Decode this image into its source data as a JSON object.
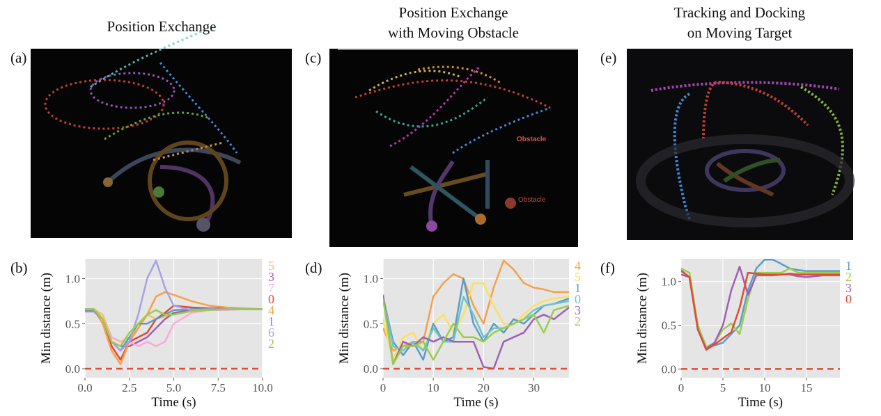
{
  "columns": [
    {
      "title": [
        "Position Exchange"
      ],
      "panel_label": "(a)",
      "annotations": []
    },
    {
      "title": [
        "Position Exchange",
        "with Moving Obstacle"
      ],
      "panel_label": "(c)",
      "annotations": [
        "Obstacle",
        "Obstacle"
      ]
    },
    {
      "title": [
        "Tracking and Docking",
        "on Moving Target"
      ],
      "panel_label": "(e)",
      "annotations": []
    }
  ],
  "chart_data": [
    {
      "type": "line",
      "panel_label": "(b)",
      "xlabel": "Time (s)",
      "ylabel": "Min distance (m)",
      "xlim": [
        0,
        10
      ],
      "xticks": [
        {
          "value": 0,
          "label": "0.0"
        },
        {
          "value": 2.5,
          "label": "2.5"
        },
        {
          "value": 5,
          "label": "5.0"
        },
        {
          "value": 7.5,
          "label": "7.5"
        },
        {
          "value": 10,
          "label": "10.0"
        }
      ],
      "ylim": [
        -0.1,
        1.22
      ],
      "yticks": [
        {
          "value": 0,
          "label": "0.0"
        },
        {
          "value": 0.5,
          "label": "0.5"
        },
        {
          "value": 1,
          "label": "1.0"
        }
      ],
      "grid": true,
      "hline": 0,
      "hline_color": "#E24A33",
      "x": [
        0,
        0.5,
        1,
        1.5,
        2,
        2.5,
        3,
        3.5,
        4,
        4.5,
        5,
        6,
        7,
        8,
        9,
        10
      ],
      "series": [
        {
          "name": "5",
          "color": "#FBC15E",
          "values": [
            0.66,
            0.66,
            0.6,
            0.35,
            0.3,
            0.35,
            0.45,
            0.6,
            0.55,
            0.58,
            0.62,
            0.65,
            0.66,
            0.66,
            0.66,
            0.66
          ]
        },
        {
          "name": "3",
          "color": "#A05FB5",
          "values": [
            0.65,
            0.64,
            0.55,
            0.3,
            0.25,
            0.25,
            0.3,
            0.35,
            0.45,
            0.55,
            0.62,
            0.65,
            0.66,
            0.66,
            0.66,
            0.66
          ]
        },
        {
          "name": "7",
          "color": "#FFA8D8",
          "values": [
            0.63,
            0.63,
            0.55,
            0.35,
            0.3,
            0.3,
            0.25,
            0.3,
            0.25,
            0.3,
            0.5,
            0.62,
            0.65,
            0.65,
            0.66,
            0.66
          ]
        },
        {
          "name": "0",
          "color": "#E24A33",
          "values": [
            0.66,
            0.66,
            0.55,
            0.25,
            0.1,
            0.3,
            0.35,
            0.4,
            0.55,
            0.62,
            0.7,
            0.68,
            0.67,
            0.67,
            0.66,
            0.66
          ]
        },
        {
          "name": "4",
          "color": "#F5A04A",
          "values": [
            0.66,
            0.66,
            0.5,
            0.2,
            0.05,
            0.3,
            0.45,
            0.6,
            0.8,
            0.85,
            0.82,
            0.75,
            0.7,
            0.68,
            0.67,
            0.66
          ]
        },
        {
          "name": "1",
          "color": "#5B9BC8",
          "values": [
            0.64,
            0.64,
            0.55,
            0.3,
            0.2,
            0.35,
            0.5,
            0.5,
            0.55,
            0.6,
            0.65,
            0.66,
            0.66,
            0.66,
            0.66,
            0.66
          ]
        },
        {
          "name": "6",
          "color": "#A3A3E3",
          "values": [
            0.66,
            0.66,
            0.55,
            0.3,
            0.2,
            0.3,
            0.6,
            1.0,
            1.2,
            0.9,
            0.7,
            0.65,
            0.66,
            0.66,
            0.66,
            0.66
          ]
        },
        {
          "name": "2",
          "color": "#9ACD4B",
          "values": [
            0.66,
            0.66,
            0.55,
            0.3,
            0.25,
            0.4,
            0.5,
            0.6,
            0.65,
            0.6,
            0.6,
            0.64,
            0.65,
            0.66,
            0.66,
            0.66
          ]
        }
      ]
    },
    {
      "type": "line",
      "panel_label": "(d)",
      "xlabel": "Time (s)",
      "ylabel": "Min distance (m)",
      "xlim": [
        0,
        37
      ],
      "xticks": [
        0,
        10,
        20,
        30
      ],
      "ylim": [
        -0.1,
        1.22
      ],
      "yticks": [
        {
          "value": 0,
          "label": "0.0"
        },
        {
          "value": 0.5,
          "label": "0.5"
        },
        {
          "value": 1,
          "label": "1.0"
        }
      ],
      "grid": true,
      "hline": 0,
      "hline_color": "#E24A33",
      "x": [
        0,
        2,
        4,
        6,
        8,
        10,
        12,
        14,
        16,
        18,
        20,
        22,
        24,
        26,
        28,
        30,
        32,
        34,
        37
      ],
      "series": [
        {
          "name": "4",
          "color": "#F5A04A",
          "values": [
            0.45,
            0.2,
            0.25,
            0.3,
            0.3,
            0.8,
            0.95,
            1.05,
            1.0,
            0.7,
            0.5,
            0.9,
            1.2,
            1.1,
            0.95,
            0.9,
            0.88,
            0.85,
            0.85
          ]
        },
        {
          "name": "5",
          "color": "#FBE05E",
          "values": [
            0.55,
            0.1,
            0.35,
            0.4,
            0.2,
            0.5,
            0.6,
            0.4,
            0.6,
            0.95,
            0.95,
            0.7,
            0.5,
            0.5,
            0.6,
            0.7,
            0.75,
            0.78,
            0.8
          ]
        },
        {
          "name": "1",
          "color": "#5B9BC8",
          "values": [
            0.8,
            0.3,
            0.15,
            0.3,
            0.1,
            0.5,
            0.3,
            0.35,
            1.0,
            0.5,
            0.3,
            0.5,
            0.4,
            0.55,
            0.5,
            0.6,
            0.7,
            0.72,
            0.78
          ]
        },
        {
          "name": "0",
          "color": "#6EC5C5",
          "values": [
            0.8,
            0.25,
            0.2,
            0.3,
            0.2,
            0.45,
            0.3,
            0.3,
            0.8,
            0.6,
            0.35,
            0.45,
            0.45,
            0.5,
            0.55,
            0.65,
            0.7,
            0.72,
            0.75
          ]
        },
        {
          "name": "3",
          "color": "#A05FB5",
          "values": [
            0.82,
            0.05,
            0.3,
            0.25,
            0.35,
            0.3,
            0.35,
            0.3,
            0.3,
            0.3,
            0.02,
            0.0,
            0.3,
            0.35,
            0.4,
            0.55,
            0.6,
            0.55,
            0.68
          ]
        },
        {
          "name": "2",
          "color": "#9ACD4B",
          "values": [
            0.78,
            0.05,
            0.25,
            0.25,
            0.3,
            0.1,
            0.3,
            0.5,
            0.35,
            0.35,
            0.3,
            0.4,
            0.45,
            0.5,
            0.55,
            0.6,
            0.4,
            0.65,
            0.7
          ]
        }
      ]
    },
    {
      "type": "line",
      "panel_label": "(f)",
      "xlabel": "Time (s)",
      "ylabel": "Min distance (m)",
      "xlim": [
        0,
        19
      ],
      "xticks": [
        0,
        5,
        10,
        15
      ],
      "ylim": [
        -0.1,
        1.26
      ],
      "yticks": [
        {
          "value": 0,
          "label": "0.0"
        },
        {
          "value": 0.5,
          "label": "0.5"
        },
        {
          "value": 1,
          "label": "1.0"
        }
      ],
      "grid": true,
      "hline": 0,
      "hline_color": "#E24A33",
      "x": [
        0,
        1,
        2,
        3,
        4,
        5,
        6,
        7,
        8,
        9,
        10,
        11,
        12,
        13,
        14,
        15,
        16,
        17,
        19
      ],
      "series": [
        {
          "name": "1",
          "color": "#5B9BC8",
          "values": [
            1.13,
            1.05,
            0.5,
            0.25,
            0.27,
            0.3,
            0.4,
            0.5,
            0.9,
            1.15,
            1.25,
            1.25,
            1.2,
            1.15,
            1.13,
            1.12,
            1.12,
            1.12,
            1.12
          ]
        },
        {
          "name": "2",
          "color": "#9ACD4B",
          "values": [
            1.15,
            1.1,
            0.5,
            0.25,
            0.3,
            0.45,
            0.52,
            0.4,
            0.8,
            1.1,
            1.1,
            1.1,
            1.1,
            1.15,
            1.1,
            1.1,
            1.1,
            1.1,
            1.1
          ]
        },
        {
          "name": "3",
          "color": "#A05FB5",
          "values": [
            1.08,
            1.05,
            0.45,
            0.23,
            0.3,
            0.5,
            0.9,
            1.17,
            0.85,
            1.07,
            1.07,
            1.07,
            1.08,
            1.08,
            1.06,
            1.05,
            1.06,
            1.07,
            1.07
          ]
        },
        {
          "name": "0",
          "color": "#E24A33",
          "values": [
            1.12,
            1.05,
            0.45,
            0.22,
            0.28,
            0.35,
            0.42,
            0.7,
            1.1,
            1.09,
            1.08,
            1.08,
            1.08,
            1.09,
            1.08,
            1.08,
            1.08,
            1.08,
            1.08
          ]
        }
      ]
    }
  ]
}
